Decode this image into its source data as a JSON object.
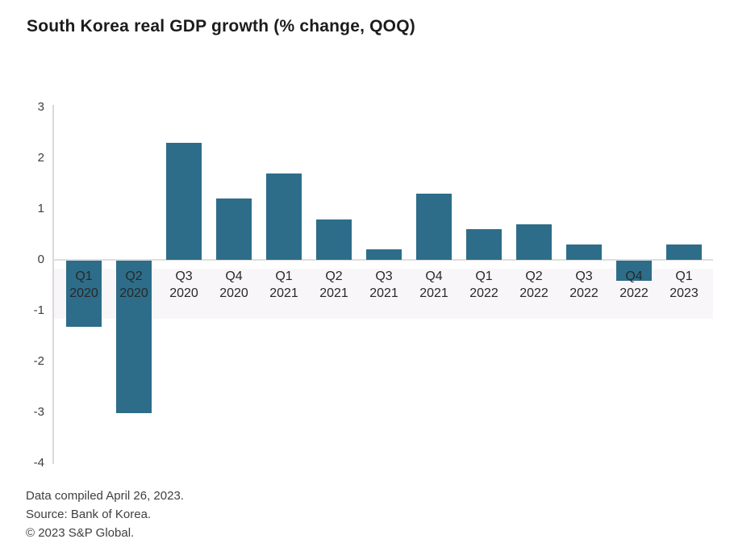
{
  "title": "South Korea real GDP growth (% change, QOQ)",
  "footnotes": [
    "Data compiled April 26, 2023.",
    "Source: Bank of Korea.",
    "© 2023 S&P Global."
  ],
  "chart_data": {
    "type": "bar",
    "title": "South Korea real GDP growth (% change, QOQ)",
    "categories": [
      "Q1 2020",
      "Q2 2020",
      "Q3 2020",
      "Q4 2020",
      "Q1 2021",
      "Q2 2021",
      "Q3 2021",
      "Q4 2021",
      "Q1 2022",
      "Q2 2022",
      "Q3 2022",
      "Q4 2022",
      "Q1 2023"
    ],
    "values": [
      -1.3,
      -3.0,
      2.3,
      1.2,
      1.7,
      0.8,
      0.2,
      1.3,
      0.6,
      0.7,
      0.3,
      -0.4,
      0.3
    ],
    "xlabel": "",
    "ylabel": "",
    "ylim": [
      -4,
      3
    ],
    "yticks": [
      3,
      2,
      1,
      0,
      -1,
      -2,
      -3,
      -4
    ],
    "grid": "zero-line-only",
    "legend": "none",
    "bar_color": "#2d6d89",
    "axis_color": "#d9d9d9",
    "tick_label_color": "#3d3d3d"
  }
}
